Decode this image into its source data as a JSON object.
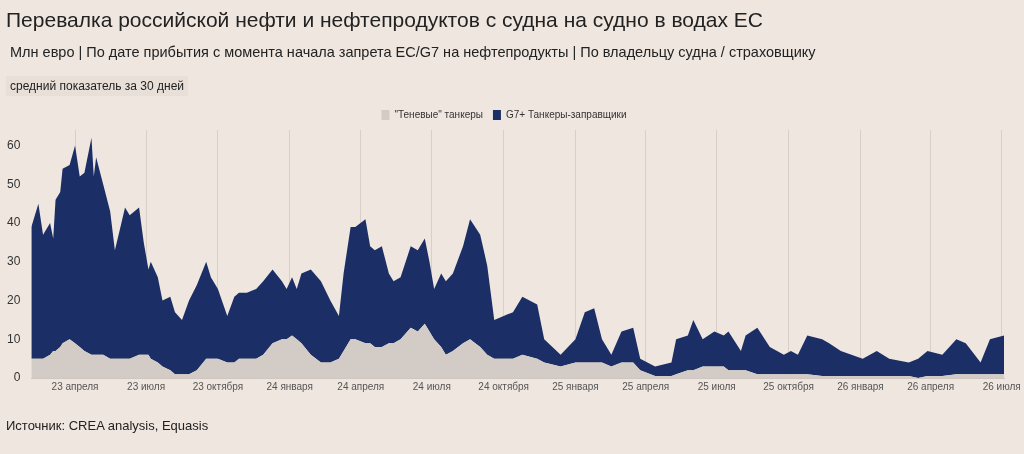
{
  "chart_data": {
    "type": "area",
    "title": "Перевалка российской нефти и нефтепродуктов с судна на судно в водах ЕС",
    "subtitle": "Млн евро | По дате прибытия с момента начала запрета ЕС/G7 на нефтепродукты | По владельцу судна / страховщику",
    "annotations": [
      "средний показатель за 30 дней",
      "Источник: CREA analysis, Equasis"
    ],
    "x": [
      "2023-02-04",
      "2023-02-13",
      "2023-02-19",
      "2023-02-28",
      "2023-03-04",
      "2023-03-07",
      "2023-03-13",
      "2023-03-16",
      "2023-03-25",
      "2023-04-01",
      "2023-04-07",
      "2023-04-13",
      "2023-04-22",
      "2023-04-25",
      "2023-04-28",
      "2023-05-07",
      "2023-05-16",
      "2023-05-22",
      "2023-05-28",
      "2023-06-04",
      "2023-06-10",
      "2023-06-22",
      "2023-06-28",
      "2023-07-04",
      "2023-07-07",
      "2023-07-16",
      "2023-07-22",
      "2023-08-01",
      "2023-08-07",
      "2023-08-16",
      "2023-08-25",
      "2023-09-04",
      "2023-09-16",
      "2023-09-22",
      "2023-10-01",
      "2023-10-13",
      "2023-10-22",
      "2023-10-28",
      "2023-11-07",
      "2023-11-19",
      "2023-11-28",
      "2023-12-10",
      "2023-12-22",
      "2023-12-28",
      "2024-01-04",
      "2024-01-10",
      "2024-01-16",
      "2024-01-28",
      "2024-02-10",
      "2024-02-22",
      "2024-03-04",
      "2024-03-10",
      "2024-03-19",
      "2024-03-25",
      "2024-04-07",
      "2024-04-13",
      "2024-04-19",
      "2024-04-28",
      "2024-05-07",
      "2024-05-13",
      "2024-05-22",
      "2024-06-04",
      "2024-06-13",
      "2024-06-22",
      "2024-06-28",
      "2024-07-04",
      "2024-07-13",
      "2024-07-19",
      "2024-07-28",
      "2024-08-10",
      "2024-08-19",
      "2024-09-01",
      "2024-09-10",
      "2024-09-19",
      "2024-10-01",
      "2024-10-13",
      "2024-10-25",
      "2024-11-13",
      "2024-11-22",
      "2024-12-13",
      "2025-01-01",
      "2025-01-13",
      "2025-01-25",
      "2025-02-04",
      "2025-02-16",
      "2025-03-01",
      "2025-03-16",
      "2025-03-25",
      "2025-04-13",
      "2025-05-04",
      "2025-05-10",
      "2025-05-25",
      "2025-06-01",
      "2025-06-13",
      "2025-06-28",
      "2025-07-10",
      "2025-07-16",
      "2025-08-01",
      "2025-08-07",
      "2025-08-22",
      "2025-09-07",
      "2025-09-25",
      "2025-10-04",
      "2025-10-13",
      "2025-10-25",
      "2025-11-13",
      "2025-11-22",
      "2025-12-07",
      "2026-01-04",
      "2026-01-22",
      "2026-02-07",
      "2026-03-04",
      "2026-03-16",
      "2026-03-28",
      "2026-04-16",
      "2026-05-04",
      "2026-05-16",
      "2026-06-04",
      "2026-06-16",
      "2026-07-04"
    ],
    "series": [
      {
        "name": "\"Теневые\" танкеры",
        "color": "#d3ccc6",
        "values": [
          5,
          5,
          5,
          6,
          7,
          7,
          8,
          9,
          10,
          9,
          8,
          7,
          6,
          6,
          6,
          6,
          5,
          5,
          5,
          5,
          5,
          6,
          6,
          6,
          5,
          4,
          3,
          2,
          1,
          1,
          1,
          2,
          5,
          5,
          5,
          4,
          4,
          5,
          5,
          5,
          6,
          9,
          10,
          10,
          11,
          10,
          9,
          6,
          4,
          4,
          5,
          7,
          10,
          10,
          9,
          9,
          8,
          8,
          9,
          9,
          10,
          13,
          12,
          14,
          12,
          10,
          8,
          6,
          7,
          9,
          10,
          8,
          6,
          5,
          5,
          5,
          6,
          5,
          4,
          3,
          4,
          4,
          4,
          4,
          3,
          4,
          4,
          2,
          0.5,
          0.5,
          1,
          2,
          2,
          3,
          3,
          3,
          2,
          2,
          2,
          1,
          1,
          1,
          1,
          1,
          1,
          0.5,
          0.5,
          0.5,
          0.5,
          0.5,
          0.5,
          0.5,
          0,
          0.5,
          0.5,
          1,
          1,
          1,
          1,
          1
        ]
      },
      {
        "name": "G7+ Танкеры-заправщики",
        "color": "#1b2f66",
        "values": [
          34,
          40,
          32,
          34,
          29,
          39,
          40,
          45,
          45,
          51,
          44,
          46,
          56,
          46,
          51,
          44,
          38,
          28,
          33,
          39,
          37,
          38,
          29,
          22,
          25,
          22,
          17,
          19,
          16,
          14,
          19,
          22,
          25,
          21,
          18,
          12,
          17,
          17,
          17,
          18,
          19,
          19,
          15,
          13,
          15,
          13,
          18,
          22,
          21,
          16,
          11,
          20,
          29,
          29,
          32,
          25,
          25,
          26,
          18,
          16,
          16,
          21,
          21,
          22,
          18,
          13,
          19,
          19,
          20,
          25,
          31,
          29,
          23,
          10,
          11,
          12,
          15,
          14,
          6,
          3,
          6,
          13,
          14,
          6,
          3,
          8,
          9,
          3,
          2.5,
          3.5,
          9,
          9,
          13,
          7,
          9,
          8,
          10,
          5,
          9,
          12,
          7,
          5,
          6,
          5,
          10,
          9.5,
          8.5,
          6.5,
          4.5,
          6.5,
          4.5,
          3.5,
          5,
          6.5,
          5.5,
          9,
          8,
          3,
          9,
          10
        ]
      }
    ],
    "stacked": true,
    "xlim": [
      "2023-02-04",
      "2026-07-04"
    ],
    "xticks": [
      {
        "value": "2023-04",
        "label": "23 апреля"
      },
      {
        "value": "2023-07",
        "label": "23 июля"
      },
      {
        "value": "2023-10",
        "label": "23 октября"
      },
      {
        "value": "2024-01",
        "label": "24 января"
      },
      {
        "value": "2024-04",
        "label": "24 апреля"
      },
      {
        "value": "2024-07",
        "label": "24 июля"
      },
      {
        "value": "2024-10",
        "label": "24 октября"
      },
      {
        "value": "2025-01",
        "label": "25 января"
      },
      {
        "value": "2025-04",
        "label": "25 апреля"
      },
      {
        "value": "2025-07",
        "label": "25 июля"
      },
      {
        "value": "2025-10",
        "label": "25 октября"
      },
      {
        "value": "2026-01",
        "label": "26 января"
      },
      {
        "value": "2026-04",
        "label": "26 апреля"
      },
      {
        "value": "2026-07",
        "label": "26 июля"
      }
    ],
    "ylim": [
      0,
      64
    ],
    "yticks": [
      0,
      10,
      20,
      30,
      40,
      50,
      60
    ],
    "grid": "x",
    "legend": "top"
  }
}
